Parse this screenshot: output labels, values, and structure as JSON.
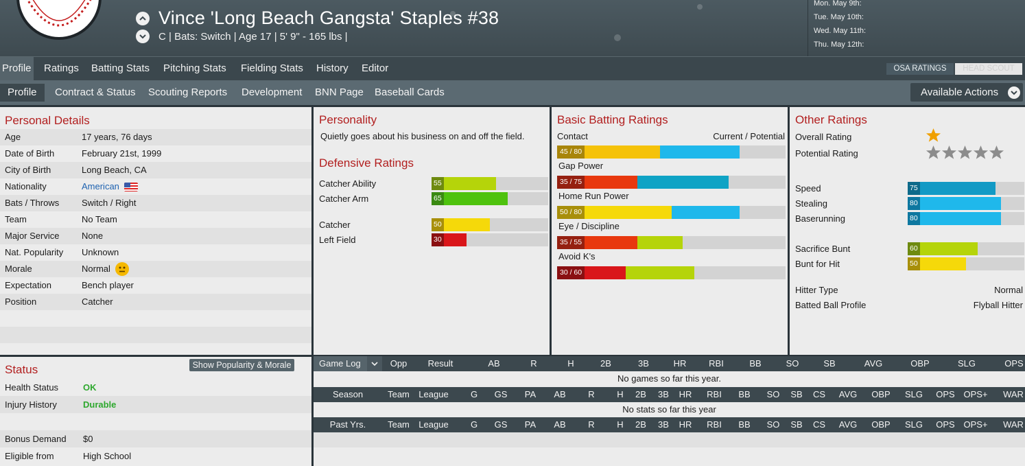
{
  "header": {
    "player_name": "Vince 'Long Beach Gangsta' Staples  #38",
    "player_meta": "C | Bats: Switch  |  Age 17  |  5' 9\" - 165 lbs  |",
    "schedule": [
      "Mon. May 9th:",
      "Tue. May 10th:",
      "Wed. May 11th:",
      "Thu. May 12th:"
    ]
  },
  "tabs": [
    "Profile",
    "Ratings",
    "Batting Stats",
    "Pitching Stats",
    "Fielding Stats",
    "History",
    "Editor"
  ],
  "rating_source": {
    "osa": "OSA RATINGS",
    "scout": "HEAD SCOUT"
  },
  "subtabs": [
    "Profile",
    "Contract & Status",
    "Scouting Reports",
    "Development",
    "BNN Page",
    "Baseball Cards"
  ],
  "actions_label": "Available Actions",
  "personal": {
    "title": "Personal Details",
    "rows": [
      {
        "label": "Age",
        "value": "17 years, 76 days"
      },
      {
        "label": "Date of Birth",
        "value": "February 21st, 1999"
      },
      {
        "label": "City of Birth",
        "value": "Long Beach, CA"
      },
      {
        "label": "Nationality",
        "value": "American"
      },
      {
        "label": "Bats / Throws",
        "value": "Switch / Right"
      },
      {
        "label": "Team",
        "value": "No Team"
      },
      {
        "label": "Major Service",
        "value": "None"
      },
      {
        "label": "Nat. Popularity",
        "value": "Unknown"
      },
      {
        "label": "Morale",
        "value": "Normal"
      },
      {
        "label": "Expectation",
        "value": "Bench player"
      },
      {
        "label": "Position",
        "value": "Catcher"
      }
    ]
  },
  "personality": {
    "title": "Personality",
    "text": "Quietly goes about his business on and off the field."
  },
  "defensive": {
    "title": "Defensive Ratings",
    "ratings": [
      {
        "label": "Catcher Ability",
        "value": 55,
        "color": "#b5d40a",
        "dark": "#6e8a10"
      },
      {
        "label": "Catcher Arm",
        "value": 65,
        "color": "#4ec20e",
        "dark": "#3a8a12"
      },
      {
        "label": "Catcher",
        "value": 50,
        "color": "#f5d90a",
        "dark": "#a88f0a"
      },
      {
        "label": "Left Field",
        "value": 30,
        "color": "#d9161a",
        "dark": "#8a1012"
      }
    ]
  },
  "batting": {
    "title": "Basic Batting Ratings",
    "col_label": "Current / Potential",
    "ratings": [
      {
        "label": "Contact",
        "text": "45 / 80",
        "current": 45,
        "potential": 80,
        "color": "#f5c20a",
        "dark": "#a8850a"
      },
      {
        "label": "Gap Power",
        "text": "35 / 75",
        "current": 35,
        "potential": 75,
        "color": "#e8380e",
        "dark": "#952010"
      },
      {
        "label": "Home Run Power",
        "text": "50 / 80",
        "current": 50,
        "potential": 80,
        "color": "#f5d90a",
        "dark": "#a88f0a"
      },
      {
        "label": "Eye / Discipline",
        "text": "35 / 55",
        "current": 35,
        "potential": 55,
        "color": "#e8380e",
        "dark": "#952010"
      },
      {
        "label": "Avoid K's",
        "text": "30 / 60",
        "current": 30,
        "potential": 60,
        "color": "#d9161a",
        "dark": "#8a1012"
      }
    ]
  },
  "other": {
    "title": "Other Ratings",
    "overall_label": "Overall Rating",
    "overall_stars": 1,
    "potential_label": "Potential Rating",
    "potential_stars": 0,
    "speed": [
      {
        "label": "Speed",
        "value": 75,
        "color": "#129ac5",
        "dark": "#0d6a8a"
      },
      {
        "label": "Stealing",
        "value": 80,
        "color": "#1fb8eb",
        "dark": "#0e78a0"
      },
      {
        "label": "Baserunning",
        "value": 80,
        "color": "#1fb8eb",
        "dark": "#0e78a0"
      }
    ],
    "bunt": [
      {
        "label": "Sacrifice Bunt",
        "value": 60,
        "color": "#b5d40a",
        "dark": "#6e8a10"
      },
      {
        "label": "Bunt for Hit",
        "value": 50,
        "color": "#f5d90a",
        "dark": "#a88f0a"
      }
    ],
    "hitter_type_label": "Hitter Type",
    "hitter_type": "Normal",
    "batted_ball_label": "Batted Ball Profile",
    "batted_ball": "Flyball Hitter"
  },
  "status": {
    "title": "Status",
    "button": "Show Popularity & Morale",
    "rows": [
      {
        "label": "Health Status",
        "value": "OK",
        "green": true
      },
      {
        "label": "Injury History",
        "value": "Durable",
        "green": true
      },
      {
        "label": "",
        "value": ""
      },
      {
        "label": "Bonus Demand",
        "value": "$0"
      },
      {
        "label": "Eligible from",
        "value": "High School"
      }
    ]
  },
  "gamelog": {
    "selector": "Game Log",
    "columns": [
      "Opp",
      "Result",
      "AB",
      "R",
      "H",
      "2B",
      "3B",
      "HR",
      "RBI",
      "BB",
      "SO",
      "SB",
      "AVG",
      "OBP",
      "SLG",
      "OPS"
    ],
    "empty": "No games so far this year."
  },
  "season": {
    "columns": [
      "Season",
      "Team",
      "League",
      "G",
      "GS",
      "PA",
      "AB",
      "R",
      "H",
      "2B",
      "3B",
      "HR",
      "RBI",
      "BB",
      "SO",
      "SB",
      "CS",
      "AVG",
      "OBP",
      "SLG",
      "OPS",
      "OPS+",
      "WAR"
    ],
    "empty": "No stats so far this year"
  },
  "past": {
    "columns": [
      "Past Yrs.",
      "Team",
      "League",
      "G",
      "GS",
      "PA",
      "AB",
      "R",
      "H",
      "2B",
      "3B",
      "HR",
      "RBI",
      "BB",
      "SO",
      "SB",
      "CS",
      "AVG",
      "OBP",
      "SLG",
      "OPS",
      "OPS+",
      "WAR"
    ]
  },
  "colors": {
    "accent_red": "#b21f1f",
    "header_bg": "#3b474d",
    "potential_blue": "#1fb8eb"
  }
}
